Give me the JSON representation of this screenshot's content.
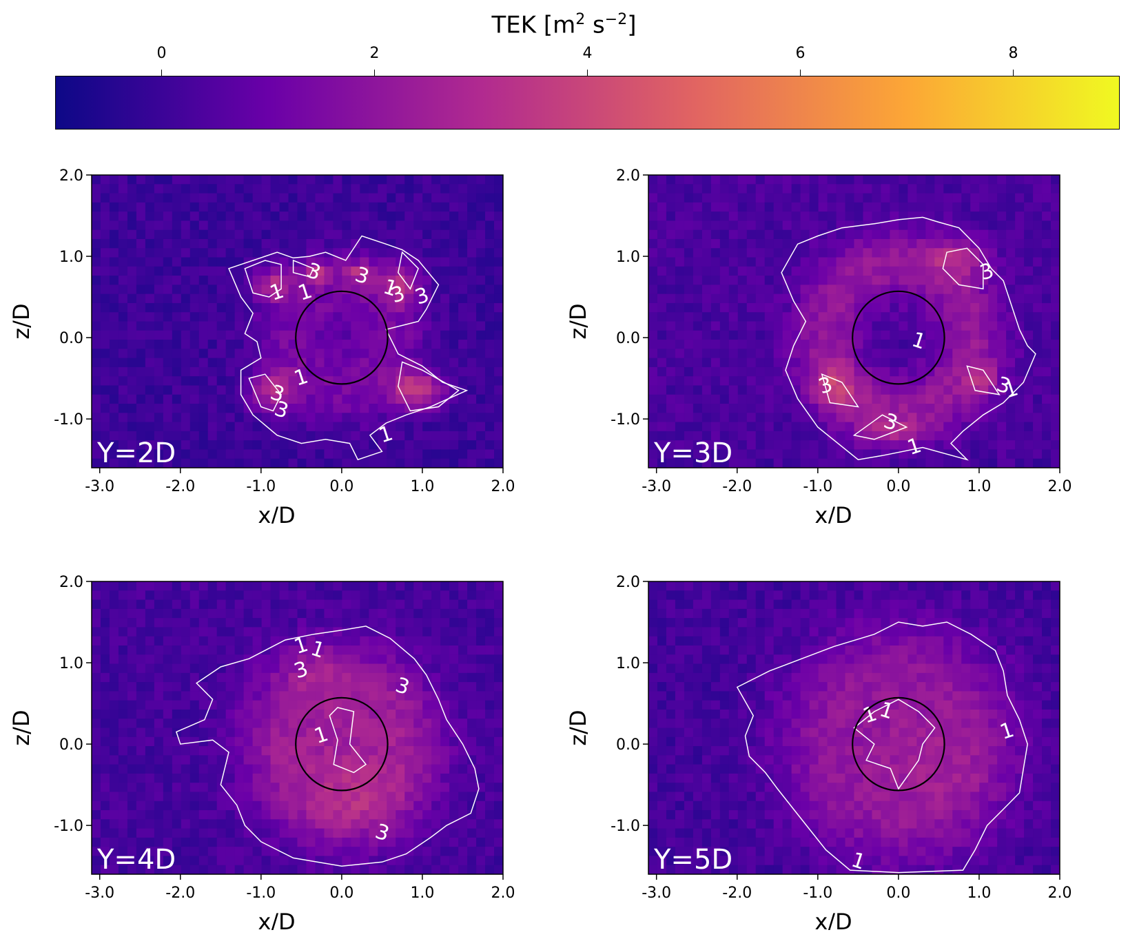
{
  "colorbar": {
    "label_prefix": "TEK [m",
    "label_exp1": "2",
    "label_mid": " s",
    "label_exp2": "−2",
    "label_suffix": "]",
    "ticks": [
      "0",
      "2",
      "4",
      "6",
      "8"
    ],
    "tick_values": [
      0,
      2,
      4,
      6,
      8
    ],
    "range": [
      -1.0,
      9.0
    ],
    "colormap": "plasma",
    "colors": [
      "#0d0887",
      "#6a00a8",
      "#b12a90",
      "#e16462",
      "#fca636",
      "#f0f921"
    ]
  },
  "chart_data": [
    {
      "type": "heatmap",
      "label": "Y=2D",
      "xlabel": "x/D",
      "ylabel": "z/D",
      "xlim": [
        -3.1,
        2.0
      ],
      "ylim": [
        -1.6,
        2.0
      ],
      "xticks": [
        "-3.0",
        "-2.0",
        "-1.0",
        "0.0",
        "1.0",
        "2.0"
      ],
      "xtick_values": [
        -3,
        -2,
        -1,
        0,
        1,
        2
      ],
      "yticks": [
        "-1.0",
        "0.0",
        "1.0",
        "2.0"
      ],
      "ytick_values": [
        -1,
        0,
        1,
        2
      ],
      "contour_levels": [
        1,
        3
      ],
      "contour_labels": [
        "1",
        "3",
        "1",
        "3",
        "3",
        "1",
        "3",
        "3",
        "1",
        "3",
        "1"
      ],
      "circle": {
        "cx": 0,
        "cz": 0,
        "r": 0.57
      },
      "shape": "quad"
    },
    {
      "type": "heatmap",
      "label": "Y=3D",
      "xlabel": "x/D",
      "ylabel": "z/D",
      "xlim": [
        -3.1,
        2.0
      ],
      "ylim": [
        -1.6,
        2.0
      ],
      "xticks": [
        "-3.0",
        "-2.0",
        "-1.0",
        "0.0",
        "1.0",
        "2.0"
      ],
      "xtick_values": [
        -3,
        -2,
        -1,
        0,
        1,
        2
      ],
      "yticks": [
        "-1.0",
        "0.0",
        "1.0",
        "2.0"
      ],
      "ytick_values": [
        -1,
        0,
        1,
        2
      ],
      "contour_levels": [
        1,
        3
      ],
      "contour_labels": [
        "3",
        "1",
        "3",
        "3",
        "1",
        "3",
        "1"
      ],
      "circle": {
        "cx": 0,
        "cz": 0,
        "r": 0.57
      },
      "shape": "ring"
    },
    {
      "type": "heatmap",
      "label": "Y=4D",
      "xlabel": "x/D",
      "ylabel": "z/D",
      "xlim": [
        -3.1,
        2.0
      ],
      "ylim": [
        -1.6,
        2.0
      ],
      "xticks": [
        "-3.0",
        "-2.0",
        "-1.0",
        "0.0",
        "1.0",
        "2.0"
      ],
      "xtick_values": [
        -3,
        -2,
        -1,
        0,
        1,
        2
      ],
      "yticks": [
        "-1.0",
        "0.0",
        "1.0",
        "2.0"
      ],
      "ytick_values": [
        -1,
        0,
        1,
        2
      ],
      "contour_levels": [
        1,
        3
      ],
      "contour_labels": [
        "1",
        "1",
        "3",
        "3",
        "1",
        "3"
      ],
      "circle": {
        "cx": 0,
        "cz": 0,
        "r": 0.57
      },
      "shape": "blob"
    },
    {
      "type": "heatmap",
      "label": "Y=5D",
      "xlabel": "x/D",
      "ylabel": "z/D",
      "xlim": [
        -3.1,
        2.0
      ],
      "ylim": [
        -1.6,
        2.0
      ],
      "xticks": [
        "-3.0",
        "-2.0",
        "-1.0",
        "0.0",
        "1.0",
        "2.0"
      ],
      "xtick_values": [
        -3,
        -2,
        -1,
        0,
        1,
        2
      ],
      "yticks": [
        "-1.0",
        "0.0",
        "1.0",
        "2.0"
      ],
      "ytick_values": [
        -1,
        0,
        1,
        2
      ],
      "contour_levels": [
        1
      ],
      "contour_labels": [
        "1",
        "1",
        "1",
        "1"
      ],
      "circle": {
        "cx": 0,
        "cz": 0,
        "r": 0.57
      },
      "shape": "wide"
    }
  ]
}
